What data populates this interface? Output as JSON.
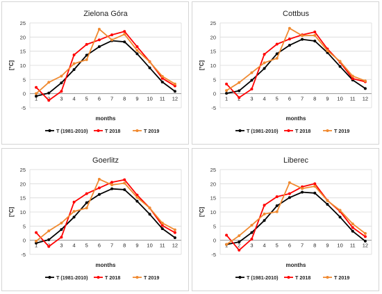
{
  "chart_data": [
    {
      "type": "line",
      "title": "Zielona Góra",
      "xlabel": "months",
      "ylabel": "[°C]",
      "x": [
        1,
        2,
        3,
        4,
        5,
        6,
        7,
        8,
        9,
        10,
        11,
        12
      ],
      "ylim": [
        -5,
        25
      ],
      "yticks": [
        -5,
        0,
        5,
        10,
        15,
        20,
        25
      ],
      "grid": true,
      "legend": "bottom",
      "series": [
        {
          "name": "T (1981-2010)",
          "color": "#000000",
          "values": [
            -0.9,
            0.2,
            3.8,
            8.5,
            13.6,
            16.6,
            18.7,
            18.3,
            14.1,
            9.1,
            4.1,
            0.8
          ]
        },
        {
          "name": "T 2018",
          "color": "#ff0000",
          "values": [
            2.2,
            -2.4,
            0.8,
            13.7,
            17.4,
            19.0,
            20.8,
            22.0,
            16.6,
            11.3,
            5.4,
            2.7
          ]
        },
        {
          "name": "T 2019",
          "color": "#f08a30",
          "values": [
            0.0,
            4.0,
            6.2,
            10.6,
            12.0,
            22.8,
            19.0,
            21.0,
            15.3,
            11.2,
            6.1,
            3.4
          ]
        }
      ]
    },
    {
      "type": "line",
      "title": "Cottbus",
      "xlabel": "months",
      "ylabel": "[°C]",
      "x": [
        1,
        2,
        3,
        4,
        5,
        6,
        7,
        8,
        9,
        10,
        11,
        12
      ],
      "ylim": [
        -5,
        25
      ],
      "yticks": [
        -5,
        0,
        5,
        10,
        15,
        20,
        25
      ],
      "grid": true,
      "legend": "bottom",
      "series": [
        {
          "name": "T (1981-2010)",
          "color": "#000000",
          "values": [
            0.1,
            1.0,
            4.7,
            8.9,
            14.1,
            17.1,
            19.2,
            18.6,
            14.5,
            9.6,
            4.8,
            1.8
          ]
        },
        {
          "name": "T 2018",
          "color": "#ff0000",
          "values": [
            3.4,
            -1.4,
            1.6,
            13.9,
            17.5,
            19.3,
            20.8,
            21.8,
            15.8,
            11.1,
            5.3,
            4.2
          ]
        },
        {
          "name": "T 2019",
          "color": "#f08a30",
          "values": [
            1.1,
            3.9,
            7.4,
            10.9,
            12.5,
            23.1,
            20.5,
            20.6,
            15.2,
            11.4,
            6.2,
            4.5
          ]
        }
      ]
    },
    {
      "type": "line",
      "title": "Goerlitz",
      "xlabel": "months",
      "ylabel": "[°C]",
      "x": [
        1,
        2,
        3,
        4,
        5,
        6,
        7,
        8,
        9,
        10,
        11,
        12
      ],
      "ylim": [
        -5,
        25
      ],
      "yticks": [
        -5,
        0,
        5,
        10,
        15,
        20,
        25
      ],
      "grid": true,
      "legend": "bottom",
      "series": [
        {
          "name": "T (1981-2010)",
          "color": "#000000",
          "values": [
            -1.0,
            0.2,
            3.8,
            8.2,
            13.3,
            16.2,
            18.2,
            17.9,
            13.8,
            9.2,
            4.1,
            0.9
          ]
        },
        {
          "name": "T 2018",
          "color": "#ff0000",
          "values": [
            2.7,
            -2.2,
            1.1,
            13.5,
            16.5,
            18.5,
            20.5,
            21.4,
            16.0,
            11.4,
            5.2,
            2.7
          ]
        },
        {
          "name": "T 2019",
          "color": "#f08a30",
          "values": [
            -0.3,
            3.3,
            6.1,
            10.2,
            11.4,
            21.6,
            19.6,
            20.2,
            15.2,
            11.4,
            6.1,
            3.7
          ]
        }
      ]
    },
    {
      "type": "line",
      "title": "Liberec",
      "xlabel": "months",
      "ylabel": "[°C]",
      "x": [
        1,
        2,
        3,
        4,
        5,
        6,
        7,
        8,
        9,
        10,
        11,
        12
      ],
      "ylim": [
        -5,
        25
      ],
      "yticks": [
        -5,
        0,
        5,
        10,
        15,
        20,
        25
      ],
      "grid": true,
      "legend": "bottom",
      "series": [
        {
          "name": "T (1981-2010)",
          "color": "#000000",
          "values": [
            -1.5,
            -0.6,
            2.7,
            7.0,
            12.2,
            15.1,
            17.0,
            16.7,
            12.7,
            8.2,
            3.2,
            -0.3
          ]
        },
        {
          "name": "T 2018",
          "color": "#ff0000",
          "values": [
            1.8,
            -3.5,
            0.4,
            12.4,
            15.4,
            16.5,
            18.9,
            20.0,
            14.1,
            10.2,
            4.5,
            1.3
          ]
        },
        {
          "name": "T 2019",
          "color": "#f08a30",
          "values": [
            -1.5,
            1.6,
            5.3,
            9.3,
            10.1,
            20.4,
            18.3,
            19.1,
            14.0,
            10.6,
            5.8,
            2.4
          ]
        }
      ]
    }
  ]
}
